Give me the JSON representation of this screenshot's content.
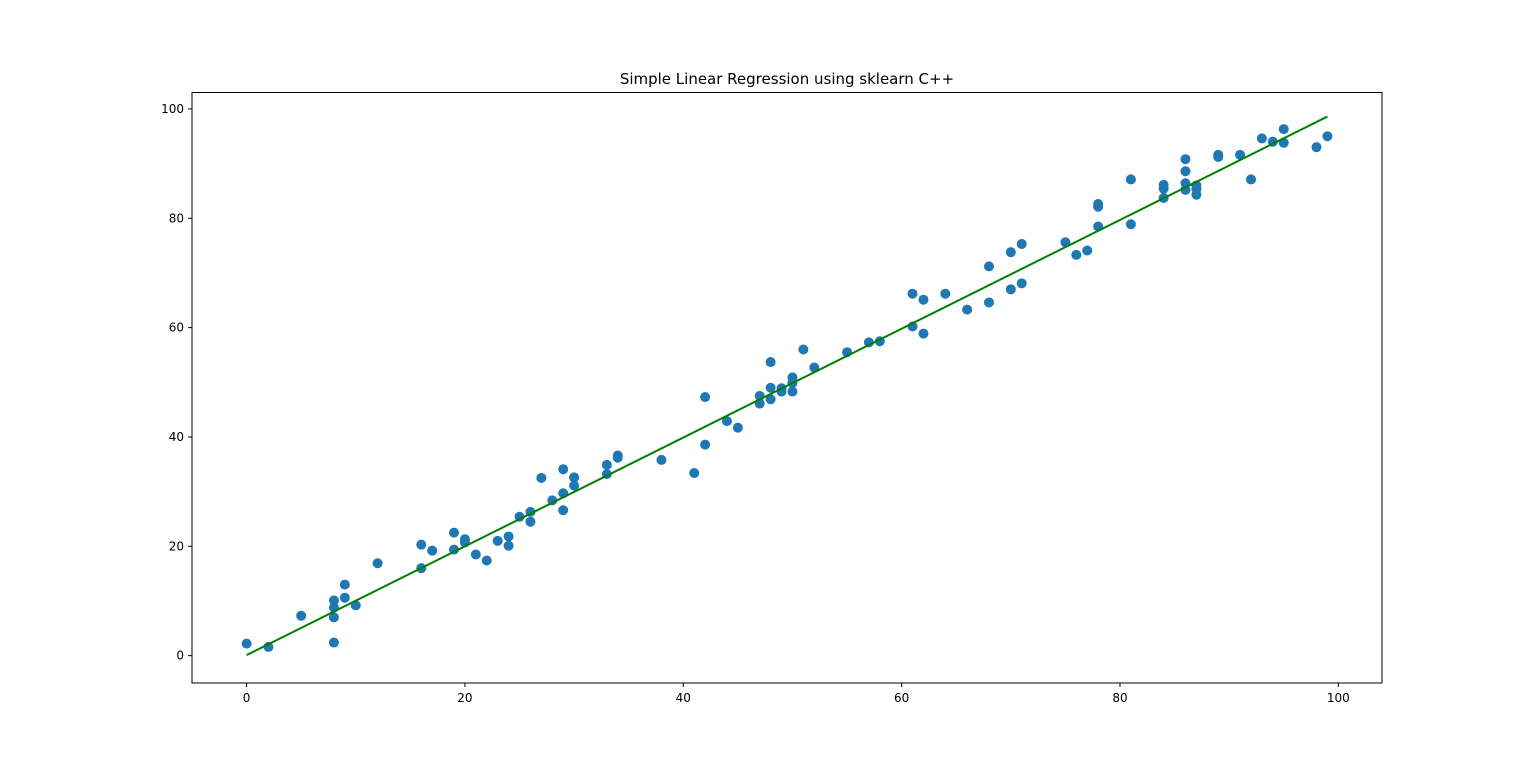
{
  "chart_data": {
    "type": "scatter",
    "title": "Simple Linear Regression using sklearn C++",
    "xlabel": "",
    "ylabel": "",
    "xlim": [
      -5,
      104
    ],
    "ylim": [
      -5,
      103
    ],
    "xticks": [
      0,
      20,
      40,
      60,
      80,
      100
    ],
    "yticks": [
      0,
      20,
      40,
      60,
      80,
      100
    ],
    "grid": false,
    "points_color": "#1f77b4",
    "line_color": "#008000",
    "points": [
      [
        0,
        2.2
      ],
      [
        2,
        1.6
      ],
      [
        5,
        7.3
      ],
      [
        8,
        10.1
      ],
      [
        8,
        8.8
      ],
      [
        8,
        7.0
      ],
      [
        8,
        2.4
      ],
      [
        9,
        13.0
      ],
      [
        9,
        10.6
      ],
      [
        10,
        9.2
      ],
      [
        12,
        16.9
      ],
      [
        16,
        20.3
      ],
      [
        16,
        16.0
      ],
      [
        17,
        19.2
      ],
      [
        19,
        22.5
      ],
      [
        19,
        19.4
      ],
      [
        20,
        21.3
      ],
      [
        20,
        20.7
      ],
      [
        21,
        18.5
      ],
      [
        22,
        17.4
      ],
      [
        23,
        21.0
      ],
      [
        24,
        21.8
      ],
      [
        24,
        20.1
      ],
      [
        25,
        25.4
      ],
      [
        26,
        26.3
      ],
      [
        26,
        24.5
      ],
      [
        27,
        32.5
      ],
      [
        28,
        28.4
      ],
      [
        29,
        34.1
      ],
      [
        29,
        29.7
      ],
      [
        29,
        26.6
      ],
      [
        30,
        32.6
      ],
      [
        30,
        31.1
      ],
      [
        33,
        34.9
      ],
      [
        33,
        33.2
      ],
      [
        34,
        36.6
      ],
      [
        34,
        36.2
      ],
      [
        38,
        35.8
      ],
      [
        41,
        33.4
      ],
      [
        42,
        47.3
      ],
      [
        42,
        38.6
      ],
      [
        44,
        42.9
      ],
      [
        45,
        41.7
      ],
      [
        47,
        47.5
      ],
      [
        47,
        46.1
      ],
      [
        48,
        53.7
      ],
      [
        48,
        49.0
      ],
      [
        48,
        46.9
      ],
      [
        49,
        48.9
      ],
      [
        49,
        48.3
      ],
      [
        50,
        50.9
      ],
      [
        50,
        49.9
      ],
      [
        50,
        48.3
      ],
      [
        51,
        56.0
      ],
      [
        52,
        52.7
      ],
      [
        55,
        55.5
      ],
      [
        57,
        57.3
      ],
      [
        58,
        57.5
      ],
      [
        61,
        66.2
      ],
      [
        61,
        60.2
      ],
      [
        62,
        65.1
      ],
      [
        62,
        58.9
      ],
      [
        64,
        66.2
      ],
      [
        66,
        63.3
      ],
      [
        68,
        71.2
      ],
      [
        68,
        64.6
      ],
      [
        70,
        73.8
      ],
      [
        70,
        67.0
      ],
      [
        71,
        75.3
      ],
      [
        71,
        68.1
      ],
      [
        75,
        75.6
      ],
      [
        76,
        73.3
      ],
      [
        77,
        74.1
      ],
      [
        78,
        82.6
      ],
      [
        78,
        82.1
      ],
      [
        78,
        78.5
      ],
      [
        81,
        87.1
      ],
      [
        81,
        78.9
      ],
      [
        84,
        86.1
      ],
      [
        84,
        85.4
      ],
      [
        84,
        83.7
      ],
      [
        86,
        90.8
      ],
      [
        86,
        88.6
      ],
      [
        86,
        86.4
      ],
      [
        86,
        85.2
      ],
      [
        87,
        86.0
      ],
      [
        87,
        85.3
      ],
      [
        87,
        84.3
      ],
      [
        89,
        91.6
      ],
      [
        89,
        91.2
      ],
      [
        91,
        91.6
      ],
      [
        92,
        87.1
      ],
      [
        93,
        94.6
      ],
      [
        94,
        94.0
      ],
      [
        95,
        96.3
      ],
      [
        95,
        93.8
      ],
      [
        98,
        93.0
      ],
      [
        99,
        95.0
      ]
    ],
    "regression_line": {
      "x": [
        0,
        99
      ],
      "y": [
        0.1,
        98.6
      ]
    }
  }
}
